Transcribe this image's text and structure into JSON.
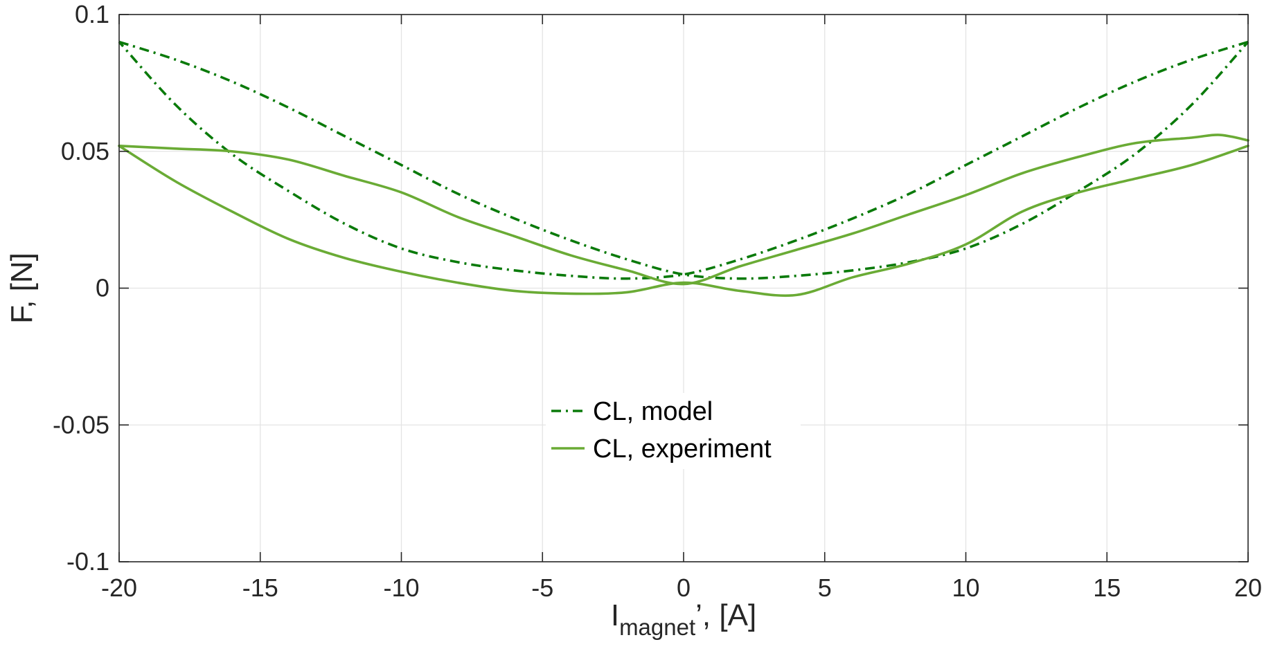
{
  "chart_data": {
    "type": "line",
    "title": "",
    "xlabel": {
      "main": "I",
      "sub": "magnet",
      "suffix": "’, [A]"
    },
    "ylabel": "F, [N]",
    "xlim": [
      -20,
      20
    ],
    "ylim": [
      -0.1,
      0.1
    ],
    "xticks": [
      -20,
      -15,
      -10,
      -5,
      0,
      5,
      10,
      15,
      20
    ],
    "xtick_labels": [
      "-20",
      "-15",
      "-10",
      "-5",
      "0",
      "5",
      "10",
      "15",
      "20"
    ],
    "yticks": [
      -0.1,
      -0.05,
      0,
      0.05,
      0.1
    ],
    "ytick_labels": [
      "-0.1",
      "-0.05",
      "0",
      "0.05",
      "0.1"
    ],
    "grid": true,
    "legend": {
      "position": "center-bottom",
      "box": false
    },
    "series": [
      {
        "name": "CL, model",
        "color": "#0a7a0a",
        "style": "dash-dot",
        "branches": [
          {
            "x": [
              -20,
              -18,
              -16,
              -14,
              -12,
              -10,
              -8,
              -6,
              -4,
              -2,
              0,
              2,
              4,
              6,
              8,
              10,
              12,
              14,
              16,
              18,
              20
            ],
            "y": [
              0.09,
              0.0835,
              0.0755,
              0.066,
              0.0555,
              0.045,
              0.0345,
              0.0255,
              0.0175,
              0.0105,
              0.005,
              0.0035,
              0.0045,
              0.0065,
              0.0095,
              0.0145,
              0.0235,
              0.0355,
              0.049,
              0.067,
              0.09
            ]
          },
          {
            "x": [
              20,
              18,
              16,
              14,
              12,
              10,
              8,
              6,
              4,
              2,
              0,
              -2,
              -4,
              -6,
              -8,
              -10,
              -12,
              -14,
              -16,
              -18,
              -20
            ],
            "y": [
              0.09,
              0.0835,
              0.0755,
              0.066,
              0.0555,
              0.045,
              0.0345,
              0.0255,
              0.0175,
              0.0105,
              0.005,
              0.0035,
              0.0045,
              0.0065,
              0.0095,
              0.0145,
              0.0235,
              0.0355,
              0.049,
              0.067,
              0.09
            ]
          }
        ]
      },
      {
        "name": "CL, experiment",
        "color": "#6aab35",
        "style": "solid",
        "branches": [
          {
            "x": [
              -20,
              -18,
              -16,
              -14,
              -12,
              -10,
              -8,
              -6,
              -4,
              -2,
              0,
              2,
              4,
              6,
              8,
              10,
              12,
              14,
              16,
              18,
              19,
              20
            ],
            "y": [
              0.052,
              0.051,
              0.05,
              0.047,
              0.041,
              0.035,
              0.026,
              0.019,
              0.012,
              0.0065,
              0.0015,
              0.008,
              0.014,
              0.02,
              0.027,
              0.034,
              0.042,
              0.048,
              0.053,
              0.055,
              0.056,
              0.054
            ]
          },
          {
            "x": [
              20,
              18,
              16,
              14,
              12,
              10,
              8,
              6,
              4,
              2,
              0,
              -2,
              -4,
              -6,
              -8,
              -10,
              -12,
              -14,
              -16,
              -18,
              -20
            ],
            "y": [
              0.052,
              0.045,
              0.04,
              0.035,
              0.028,
              0.016,
              0.009,
              0.004,
              -0.0025,
              -0.001,
              0.002,
              -0.0015,
              -0.002,
              -0.001,
              0.002,
              0.006,
              0.011,
              0.018,
              0.028,
              0.039,
              0.052
            ]
          }
        ]
      }
    ]
  }
}
